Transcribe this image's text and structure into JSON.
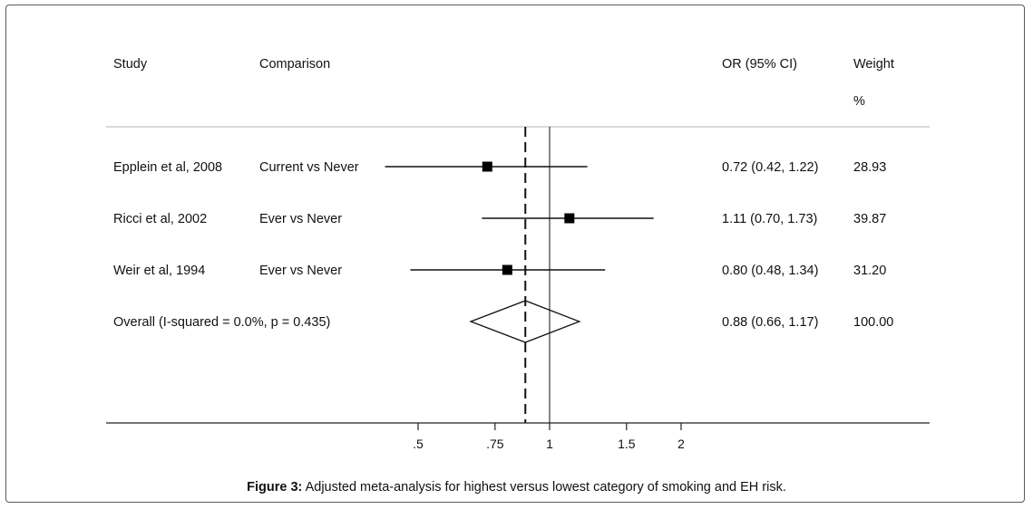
{
  "headers": {
    "study": "Study",
    "comparison": "Comparison",
    "or_ci": "OR (95% CI)",
    "weight": "Weight",
    "weight_unit": "%"
  },
  "caption": {
    "label": "Figure 3:",
    "text": "Adjusted meta-analysis for highest versus lowest category of smoking and EH risk."
  },
  "chart_data": {
    "type": "forest",
    "x_scale": "log",
    "null_line": 1,
    "pooled_line": 0.88,
    "ticks": [
      {
        "value": 0.5,
        "label": ".5"
      },
      {
        "value": 0.75,
        "label": ".75"
      },
      {
        "value": 1,
        "label": "1"
      },
      {
        "value": 1.5,
        "label": "1.5"
      },
      {
        "value": 2,
        "label": "2"
      }
    ],
    "studies": [
      {
        "study": "Epplein et al, 2008",
        "comparison": "Current vs Never",
        "or": 0.72,
        "lo": 0.42,
        "hi": 1.22,
        "or_text": "0.72 (0.42, 1.22)",
        "weight": "28.93"
      },
      {
        "study": "Ricci et al, 2002",
        "comparison": "Ever vs Never",
        "or": 1.11,
        "lo": 0.7,
        "hi": 1.73,
        "or_text": "1.11 (0.70, 1.73)",
        "weight": "39.87"
      },
      {
        "study": "Weir et al, 1994",
        "comparison": "Ever vs Never",
        "or": 0.8,
        "lo": 0.48,
        "hi": 1.34,
        "or_text": "0.80 (0.48, 1.34)",
        "weight": "31.20"
      }
    ],
    "overall": {
      "label": "Overall  (I-squared = 0.0%, p = 0.435)",
      "or": 0.88,
      "lo": 0.66,
      "hi": 1.17,
      "or_text": "0.88 (0.66, 1.17)",
      "weight": "100.00"
    }
  }
}
